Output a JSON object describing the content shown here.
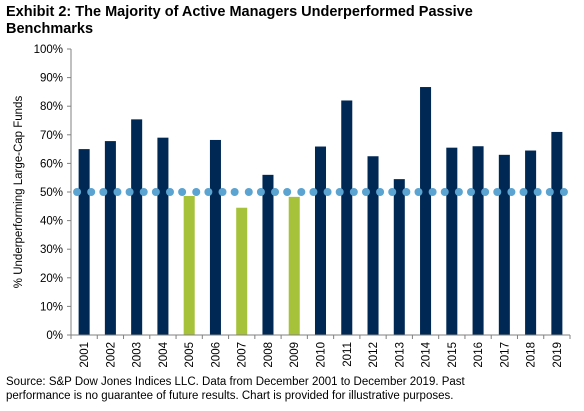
{
  "header": {
    "title_line1": "Exhibit 2: The Majority of Active Managers Underperformed Passive",
    "title_line2": "Benchmarks"
  },
  "chart_data": {
    "type": "bar",
    "categories": [
      "2001",
      "2002",
      "2003",
      "2004",
      "2005",
      "2006",
      "2007",
      "2008",
      "2009",
      "2010",
      "2011",
      "2012",
      "2013",
      "2014",
      "2015",
      "2016",
      "2017",
      "2018",
      "2019"
    ],
    "series": [
      {
        "values": [
          65.0,
          67.8,
          75.4,
          69.0,
          48.6,
          68.2,
          44.5,
          56.0,
          48.3,
          65.9,
          82.0,
          62.5,
          54.5,
          86.7,
          65.5,
          66.0,
          63.0,
          64.5,
          71.0
        ]
      },
      {
        "type": "scatter",
        "values": [
          50,
          50,
          50,
          50,
          50,
          50,
          50,
          50,
          50,
          50,
          50,
          50,
          50,
          50,
          50,
          50,
          50,
          50,
          50
        ]
      }
    ],
    "highlight_categories": [
      "2005",
      "2007",
      "2009"
    ],
    "ylabel": "% Underperforming Large-Cap Funds",
    "ylim": [
      0,
      100
    ],
    "yticks": [
      "0%",
      "10%",
      "20%",
      "30%",
      "40%",
      "50%",
      "60%",
      "70%",
      "80%",
      "90%",
      "100%"
    ],
    "grid": false,
    "colors": {
      "bar": "#002855",
      "bar_highlight": "#a6c23a",
      "marker": "#5ba3d0",
      "axis": "#808080"
    }
  },
  "footnote": {
    "line1": "Source: S&P Dow Jones Indices LLC.  Data from December 2001 to December 2019.  Past",
    "line2": "performance is no guarantee of future results.  Chart is provided for illustrative purposes."
  }
}
